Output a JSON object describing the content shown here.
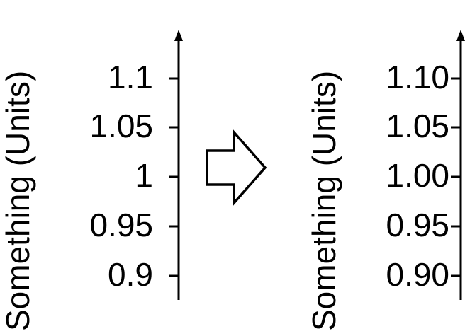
{
  "left_axis": {
    "title": "Something (Units)",
    "ticks": [
      {
        "value": 1.1,
        "label": "1.1"
      },
      {
        "value": 1.05,
        "label": "1.05"
      },
      {
        "value": 1.0,
        "label": "1"
      },
      {
        "value": 0.95,
        "label": "0.95"
      },
      {
        "value": 0.9,
        "label": "0.9"
      }
    ]
  },
  "right_axis": {
    "title": "Something (Units)",
    "ticks": [
      {
        "value": 1.1,
        "label": "1.10"
      },
      {
        "value": 1.05,
        "label": "1.05"
      },
      {
        "value": 1.0,
        "label": "1.00"
      },
      {
        "value": 0.95,
        "label": "0.95"
      },
      {
        "value": 0.9,
        "label": "0.90"
      }
    ]
  },
  "arrow": {
    "icon": "hollow-right-arrow-icon",
    "direction": "right"
  },
  "colors": {
    "stroke": "#000000",
    "background": "#ffffff"
  }
}
